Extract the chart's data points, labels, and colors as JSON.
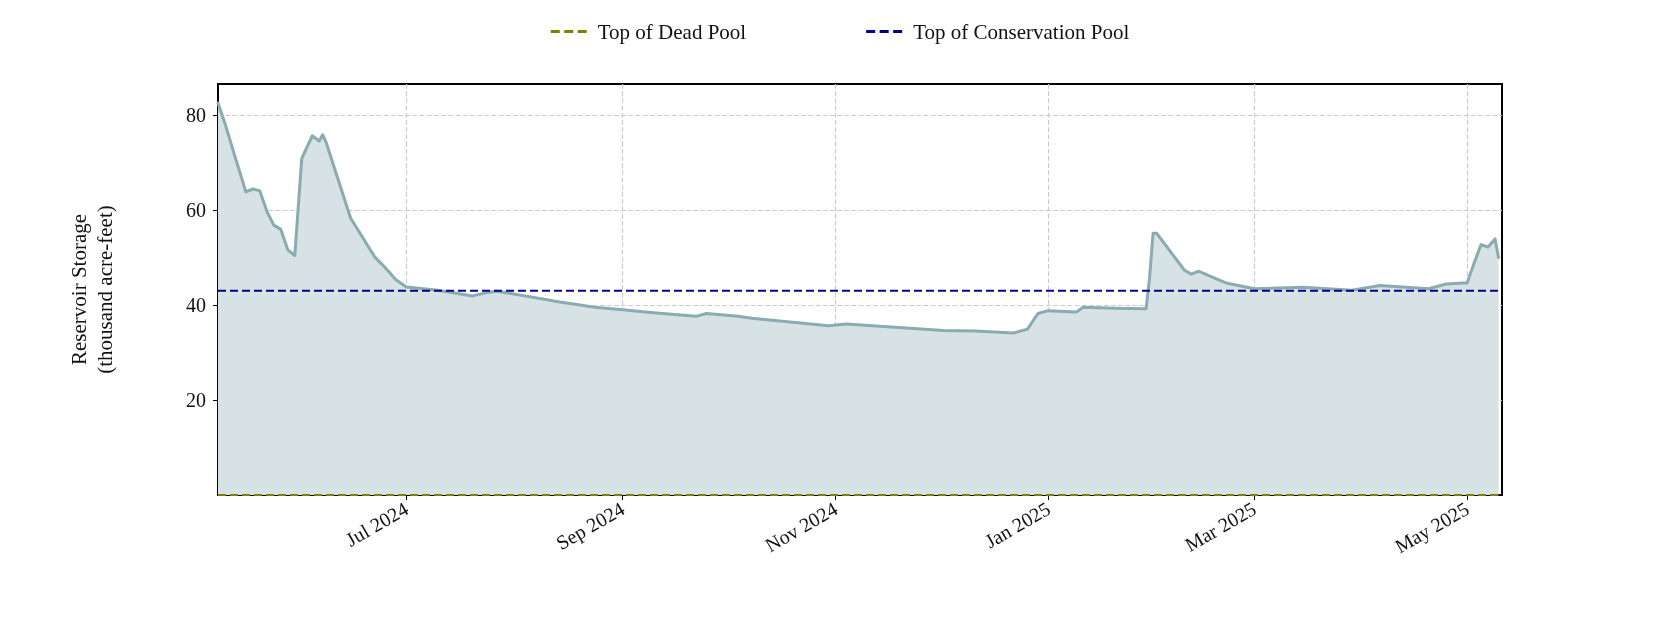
{
  "chart_data": {
    "type": "area",
    "ylabel": "Reservoir Storage\n(thousand acre-feet)",
    "xlim": [
      "2024-05-08",
      "2025-05-11"
    ],
    "ylim": [
      0,
      86.5
    ],
    "yticks": [
      20,
      40,
      60,
      80
    ],
    "xticks": [
      {
        "value": "2024-07-01",
        "label": "Jul 2024"
      },
      {
        "value": "2024-09-01",
        "label": "Sep 2024"
      },
      {
        "value": "2024-11-01",
        "label": "Nov 2024"
      },
      {
        "value": "2025-01-01",
        "label": "Jan 2025"
      },
      {
        "value": "2025-03-01",
        "label": "Mar 2025"
      },
      {
        "value": "2025-05-01",
        "label": "May 2025"
      }
    ],
    "grid": true,
    "legend": "top",
    "marker": "none",
    "line_style": "solid",
    "x": [
      "2024-05-08",
      "2024-05-10",
      "2024-05-13",
      "2024-05-16",
      "2024-05-18",
      "2024-05-20",
      "2024-05-22",
      "2024-05-24",
      "2024-05-26",
      "2024-05-28",
      "2024-05-30",
      "2024-06-01",
      "2024-06-02",
      "2024-06-04",
      "2024-06-06",
      "2024-06-07",
      "2024-06-08",
      "2024-06-15",
      "2024-06-22",
      "2024-06-25",
      "2024-06-28",
      "2024-07-01",
      "2024-07-10",
      "2024-07-20",
      "2024-07-24",
      "2024-07-27",
      "2024-08-14",
      "2024-08-24",
      "2024-09-01",
      "2024-09-09",
      "2024-09-22",
      "2024-09-25",
      "2024-10-04",
      "2024-10-08",
      "2024-10-30",
      "2024-11-04",
      "2024-11-18",
      "2024-12-02",
      "2024-12-11",
      "2024-12-22",
      "2024-12-26",
      "2024-12-29",
      "2025-01-01",
      "2025-01-09",
      "2025-01-11",
      "2025-01-20",
      "2025-01-29",
      "2025-01-30",
      "2025-01-31",
      "2025-02-01",
      "2025-02-09",
      "2025-02-11",
      "2025-02-13",
      "2025-02-21",
      "2025-03-01",
      "2025-03-15",
      "2025-03-29",
      "2025-04-06",
      "2025-04-20",
      "2025-04-25",
      "2025-04-30",
      "2025-05-01",
      "2025-05-03",
      "2025-05-05",
      "2025-05-07",
      "2025-05-09",
      "2025-05-10"
    ],
    "series": [
      {
        "color": "#8aabb0",
        "values": [
          82.5,
          78.2,
          70.9,
          63.8,
          64.4,
          64.0,
          59.7,
          56.8,
          55.9,
          51.6,
          50.4,
          70.8,
          72.4,
          75.6,
          74.5,
          75.8,
          74.2,
          58.3,
          50.0,
          47.8,
          45.3,
          43.8,
          43.1,
          41.9,
          42.6,
          42.9,
          40.6,
          39.5,
          39.0,
          38.4,
          37.6,
          38.2,
          37.6,
          37.2,
          35.6,
          36.0,
          35.3,
          34.6,
          34.5,
          34.1,
          34.9,
          38.2,
          38.8,
          38.5,
          39.5,
          39.3,
          39.2,
          45.8,
          55.1,
          55.1,
          47.3,
          46.5,
          47.1,
          44.6,
          43.4,
          43.7,
          43.1,
          44.1,
          43.4,
          44.4,
          44.6,
          44.6,
          48.8,
          52.7,
          52.2,
          53.9,
          50.0
        ]
      }
    ],
    "ref_lines": [
      {
        "axis": "y",
        "value": 0,
        "label": "Top of Dead Pool",
        "color": "#808000",
        "line_style": "dashed"
      },
      {
        "axis": "y",
        "value": 43,
        "label": "Top of Conservation Pool",
        "color": "#00008b",
        "line_style": "dashed"
      }
    ]
  }
}
